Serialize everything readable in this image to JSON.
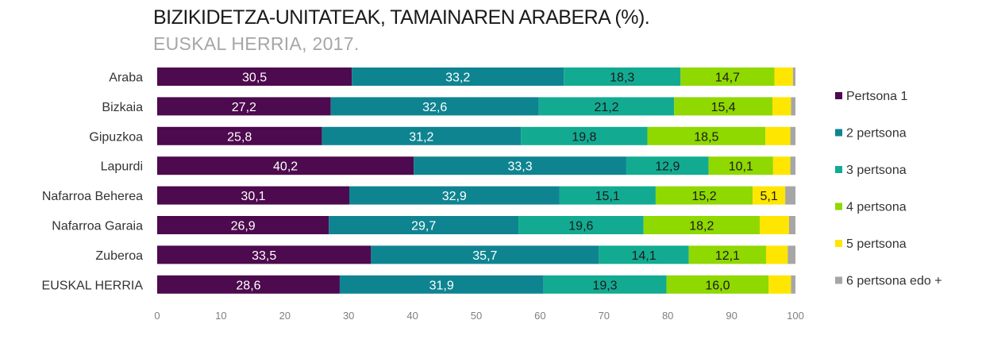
{
  "chart_data": {
    "type": "bar",
    "orientation": "horizontal",
    "stacked": true,
    "title": "BIZIKIDETZA-UNITATEAK, TAMAINAREN ARABERA (%).",
    "subtitle": "EUSKAL HERRIA, 2017.",
    "categories": [
      "Araba",
      "Bizkaia",
      "Gipuzkoa",
      "Lapurdi",
      "Nafarroa Beherea",
      "Nafarroa Garaia",
      "Zuberoa",
      "EUSKAL HERRIA"
    ],
    "series": [
      {
        "name": "Pertsona 1",
        "color": "#4d0a4e",
        "label_color": "#ffffff",
        "values": [
          30.5,
          27.2,
          25.8,
          40.2,
          30.1,
          26.9,
          33.5,
          28.6
        ],
        "labels": [
          "30,5",
          "27,2",
          "25,8",
          "40,2",
          "30,1",
          "26,9",
          "33,5",
          "28,6"
        ]
      },
      {
        "name": "2 pertsona",
        "color": "#0f8491",
        "label_color": "#ffffff",
        "values": [
          33.2,
          32.6,
          31.2,
          33.3,
          32.9,
          29.7,
          35.7,
          31.9
        ],
        "labels": [
          "33,2",
          "32,6",
          "31,2",
          "33,3",
          "32,9",
          "29,7",
          "35,7",
          "31,9"
        ]
      },
      {
        "name": "3 pertsona",
        "color": "#12ab92",
        "label_color": "#1a1a1a",
        "values": [
          18.3,
          21.2,
          19.8,
          12.9,
          15.1,
          19.6,
          14.1,
          19.3
        ],
        "labels": [
          "18,3",
          "21,2",
          "19,8",
          "12,9",
          "15,1",
          "19,6",
          "14,1",
          "19,3"
        ]
      },
      {
        "name": "4 pertsona",
        "color": "#8fd800",
        "label_color": "#1a1a1a",
        "values": [
          14.7,
          15.4,
          18.5,
          10.1,
          15.2,
          18.2,
          12.1,
          16.0
        ],
        "labels": [
          "14,7",
          "15,4",
          "18,5",
          "10,1",
          "15,2",
          "18,2",
          "12,1",
          "16,0"
        ]
      },
      {
        "name": "5 pertsona",
        "color": "#ffe600",
        "label_color": "#1a1a1a",
        "values": [
          2.9,
          2.9,
          3.9,
          2.7,
          5.1,
          4.6,
          3.4,
          3.5
        ],
        "labels": [
          "",
          "",
          "",
          "",
          "5,1",
          "",
          "",
          ""
        ]
      },
      {
        "name": "6 pertsona edo +",
        "color": "#a6a6a6",
        "label_color": "#1a1a1a",
        "values": [
          0.4,
          0.7,
          0.8,
          0.8,
          1.6,
          1.0,
          1.2,
          0.7
        ],
        "labels": [
          "",
          "",
          "",
          "",
          "",
          "",
          "",
          ""
        ]
      }
    ],
    "xlim": [
      0,
      100
    ],
    "xticks": [
      0,
      10,
      20,
      30,
      40,
      50,
      60,
      70,
      80,
      90,
      100
    ],
    "grid": false,
    "legend_position": "right"
  }
}
